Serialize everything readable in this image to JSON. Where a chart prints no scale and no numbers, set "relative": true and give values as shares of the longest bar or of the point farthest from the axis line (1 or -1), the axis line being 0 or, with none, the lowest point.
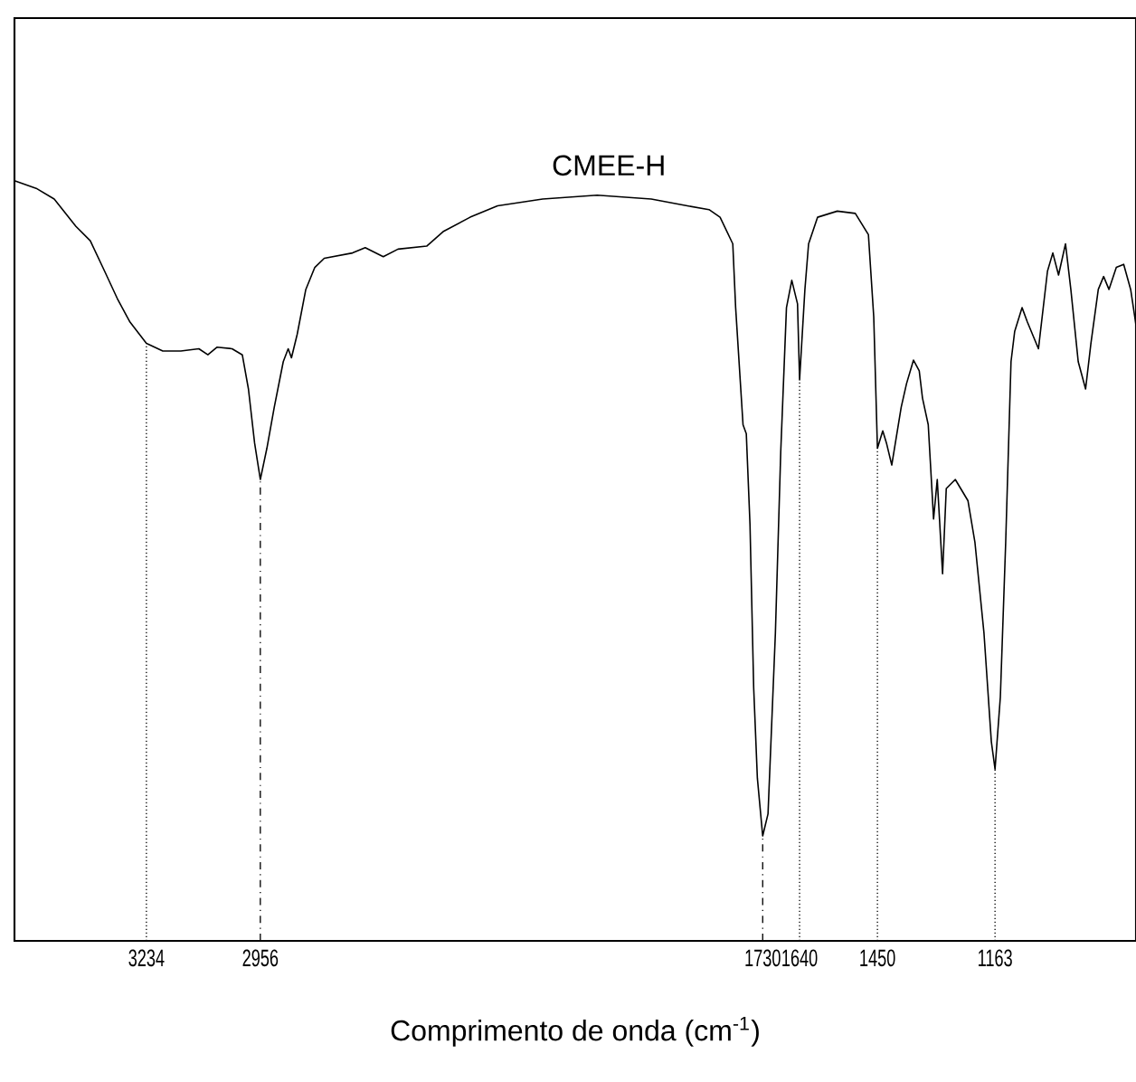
{
  "chart_data": {
    "type": "line",
    "relative": true,
    "xlabel": "Comprimento de onda (cm$^{-1}$)",
    "xlim": [
      3556,
      819
    ],
    "xticks": [
      3234,
      2956,
      1730,
      1640,
      1450,
      1163
    ],
    "series": [
      {
        "name": "CMEE-H",
        "color": "#000000",
        "x": [
          3556,
          3503,
          3459,
          3406,
          3371,
          3336,
          3305,
          3274,
          3234,
          3194,
          3150,
          3106,
          3084,
          3062,
          3025,
          3000,
          2985,
          2970,
          2956,
          2940,
          2922,
          2900,
          2888,
          2880,
          2866,
          2845,
          2823,
          2800,
          2731,
          2700,
          2656,
          2620,
          2550,
          2510,
          2444,
          2377,
          2267,
          2134,
          2002,
          1914,
          1861,
          1834,
          1803,
          1796,
          1778,
          1770,
          1761,
          1752,
          1743,
          1730,
          1717,
          1699,
          1686,
          1672,
          1659,
          1645,
          1640,
          1627,
          1618,
          1596,
          1548,
          1504,
          1472,
          1459,
          1450,
          1437,
          1428,
          1415,
          1392,
          1379,
          1362,
          1348,
          1340,
          1326,
          1313,
          1304,
          1291,
          1282,
          1260,
          1229,
          1212,
          1190,
          1172,
          1163,
          1150,
          1137,
          1124,
          1115,
          1097,
          1084,
          1057,
          1035,
          1022,
          1008,
          991,
          978,
          960,
          942,
          929,
          911,
          898,
          885,
          867,
          849,
          832,
          819
        ],
        "values": [
          1.0,
          0.99,
          0.976,
          0.94,
          0.921,
          0.881,
          0.845,
          0.814,
          0.786,
          0.776,
          0.776,
          0.779,
          0.771,
          0.781,
          0.779,
          0.771,
          0.726,
          0.655,
          0.607,
          0.648,
          0.702,
          0.762,
          0.779,
          0.767,
          0.798,
          0.857,
          0.886,
          0.898,
          0.905,
          0.912,
          0.9,
          0.91,
          0.914,
          0.933,
          0.952,
          0.967,
          0.976,
          0.981,
          0.976,
          0.967,
          0.962,
          0.952,
          0.917,
          0.833,
          0.679,
          0.667,
          0.548,
          0.333,
          0.214,
          0.138,
          0.167,
          0.405,
          0.643,
          0.833,
          0.869,
          0.838,
          0.738,
          0.857,
          0.917,
          0.952,
          0.96,
          0.957,
          0.929,
          0.821,
          0.648,
          0.671,
          0.655,
          0.626,
          0.702,
          0.733,
          0.764,
          0.75,
          0.714,
          0.679,
          0.555,
          0.607,
          0.483,
          0.595,
          0.607,
          0.579,
          0.524,
          0.405,
          0.262,
          0.226,
          0.321,
          0.524,
          0.762,
          0.802,
          0.833,
          0.814,
          0.779,
          0.881,
          0.905,
          0.876,
          0.917,
          0.857,
          0.762,
          0.726,
          0.786,
          0.857,
          0.874,
          0.857,
          0.886,
          0.89,
          0.857,
          0.81
        ]
      }
    ],
    "ref_lines": [
      {
        "axis": "x",
        "value": 3234,
        "line_style": "dotted"
      },
      {
        "axis": "x",
        "value": 2956,
        "line_style": "dashed"
      },
      {
        "axis": "x",
        "value": 1730,
        "line_style": "dashed"
      },
      {
        "axis": "x",
        "value": 1640,
        "line_style": "dotted"
      },
      {
        "axis": "x",
        "value": 1450,
        "line_style": "dotted"
      },
      {
        "axis": "x",
        "value": 1163,
        "line_style": "dotted"
      }
    ]
  }
}
